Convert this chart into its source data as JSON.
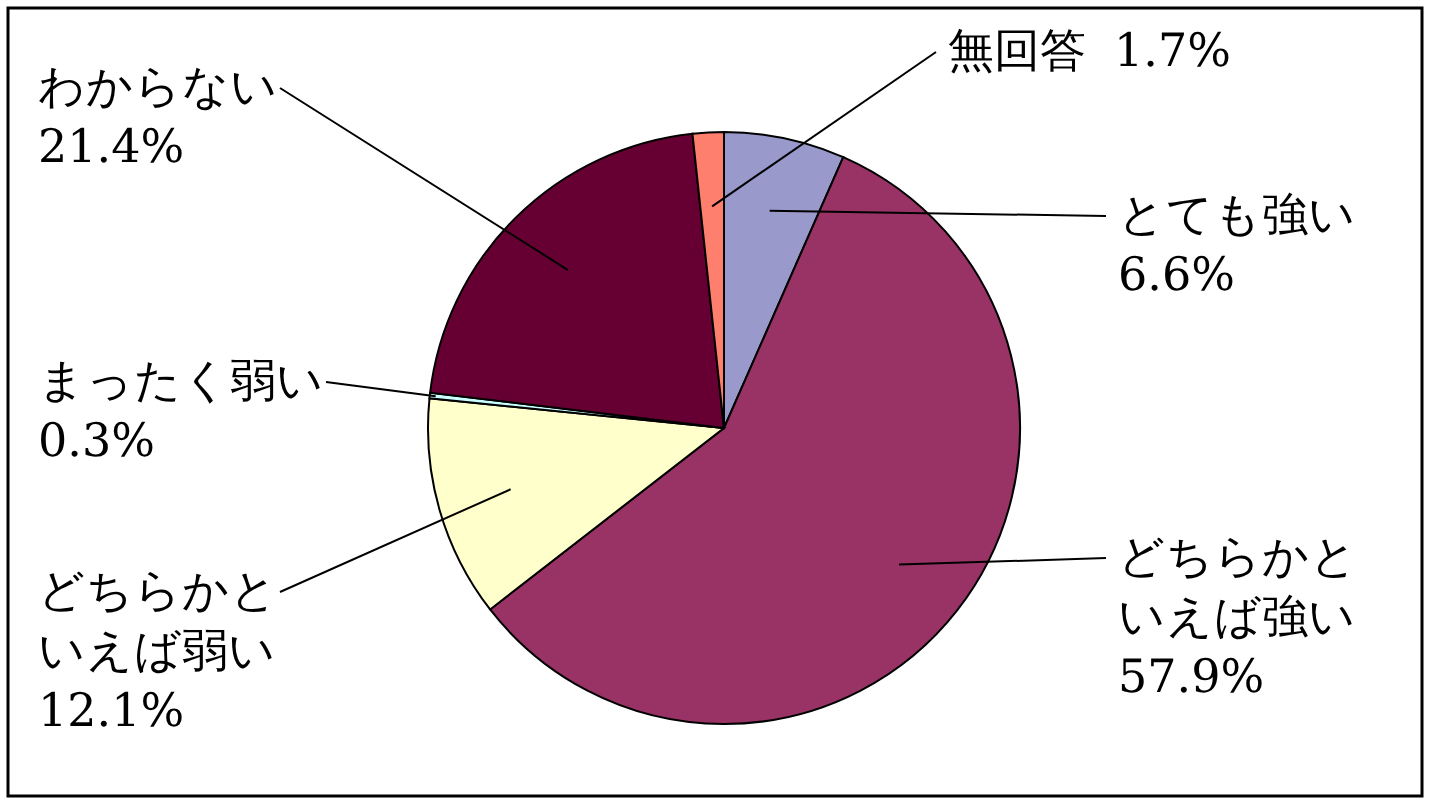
{
  "chart_data": {
    "type": "pie",
    "categories": [
      "とても強い",
      "どちらかといえば強い",
      "どちらかといえば弱い",
      "まったく弱い",
      "わからない",
      "無回答"
    ],
    "values": [
      6.6,
      57.9,
      12.1,
      0.3,
      21.4,
      1.7
    ],
    "colors": [
      "#9999cc",
      "#993366",
      "#ffffcc",
      "#ccffff",
      "#660033",
      "#ff7f6e"
    ],
    "value_labels": [
      "6.6%",
      "57.9%",
      "12.1%",
      "0.3%",
      "21.4%",
      "1.7%"
    ]
  }
}
